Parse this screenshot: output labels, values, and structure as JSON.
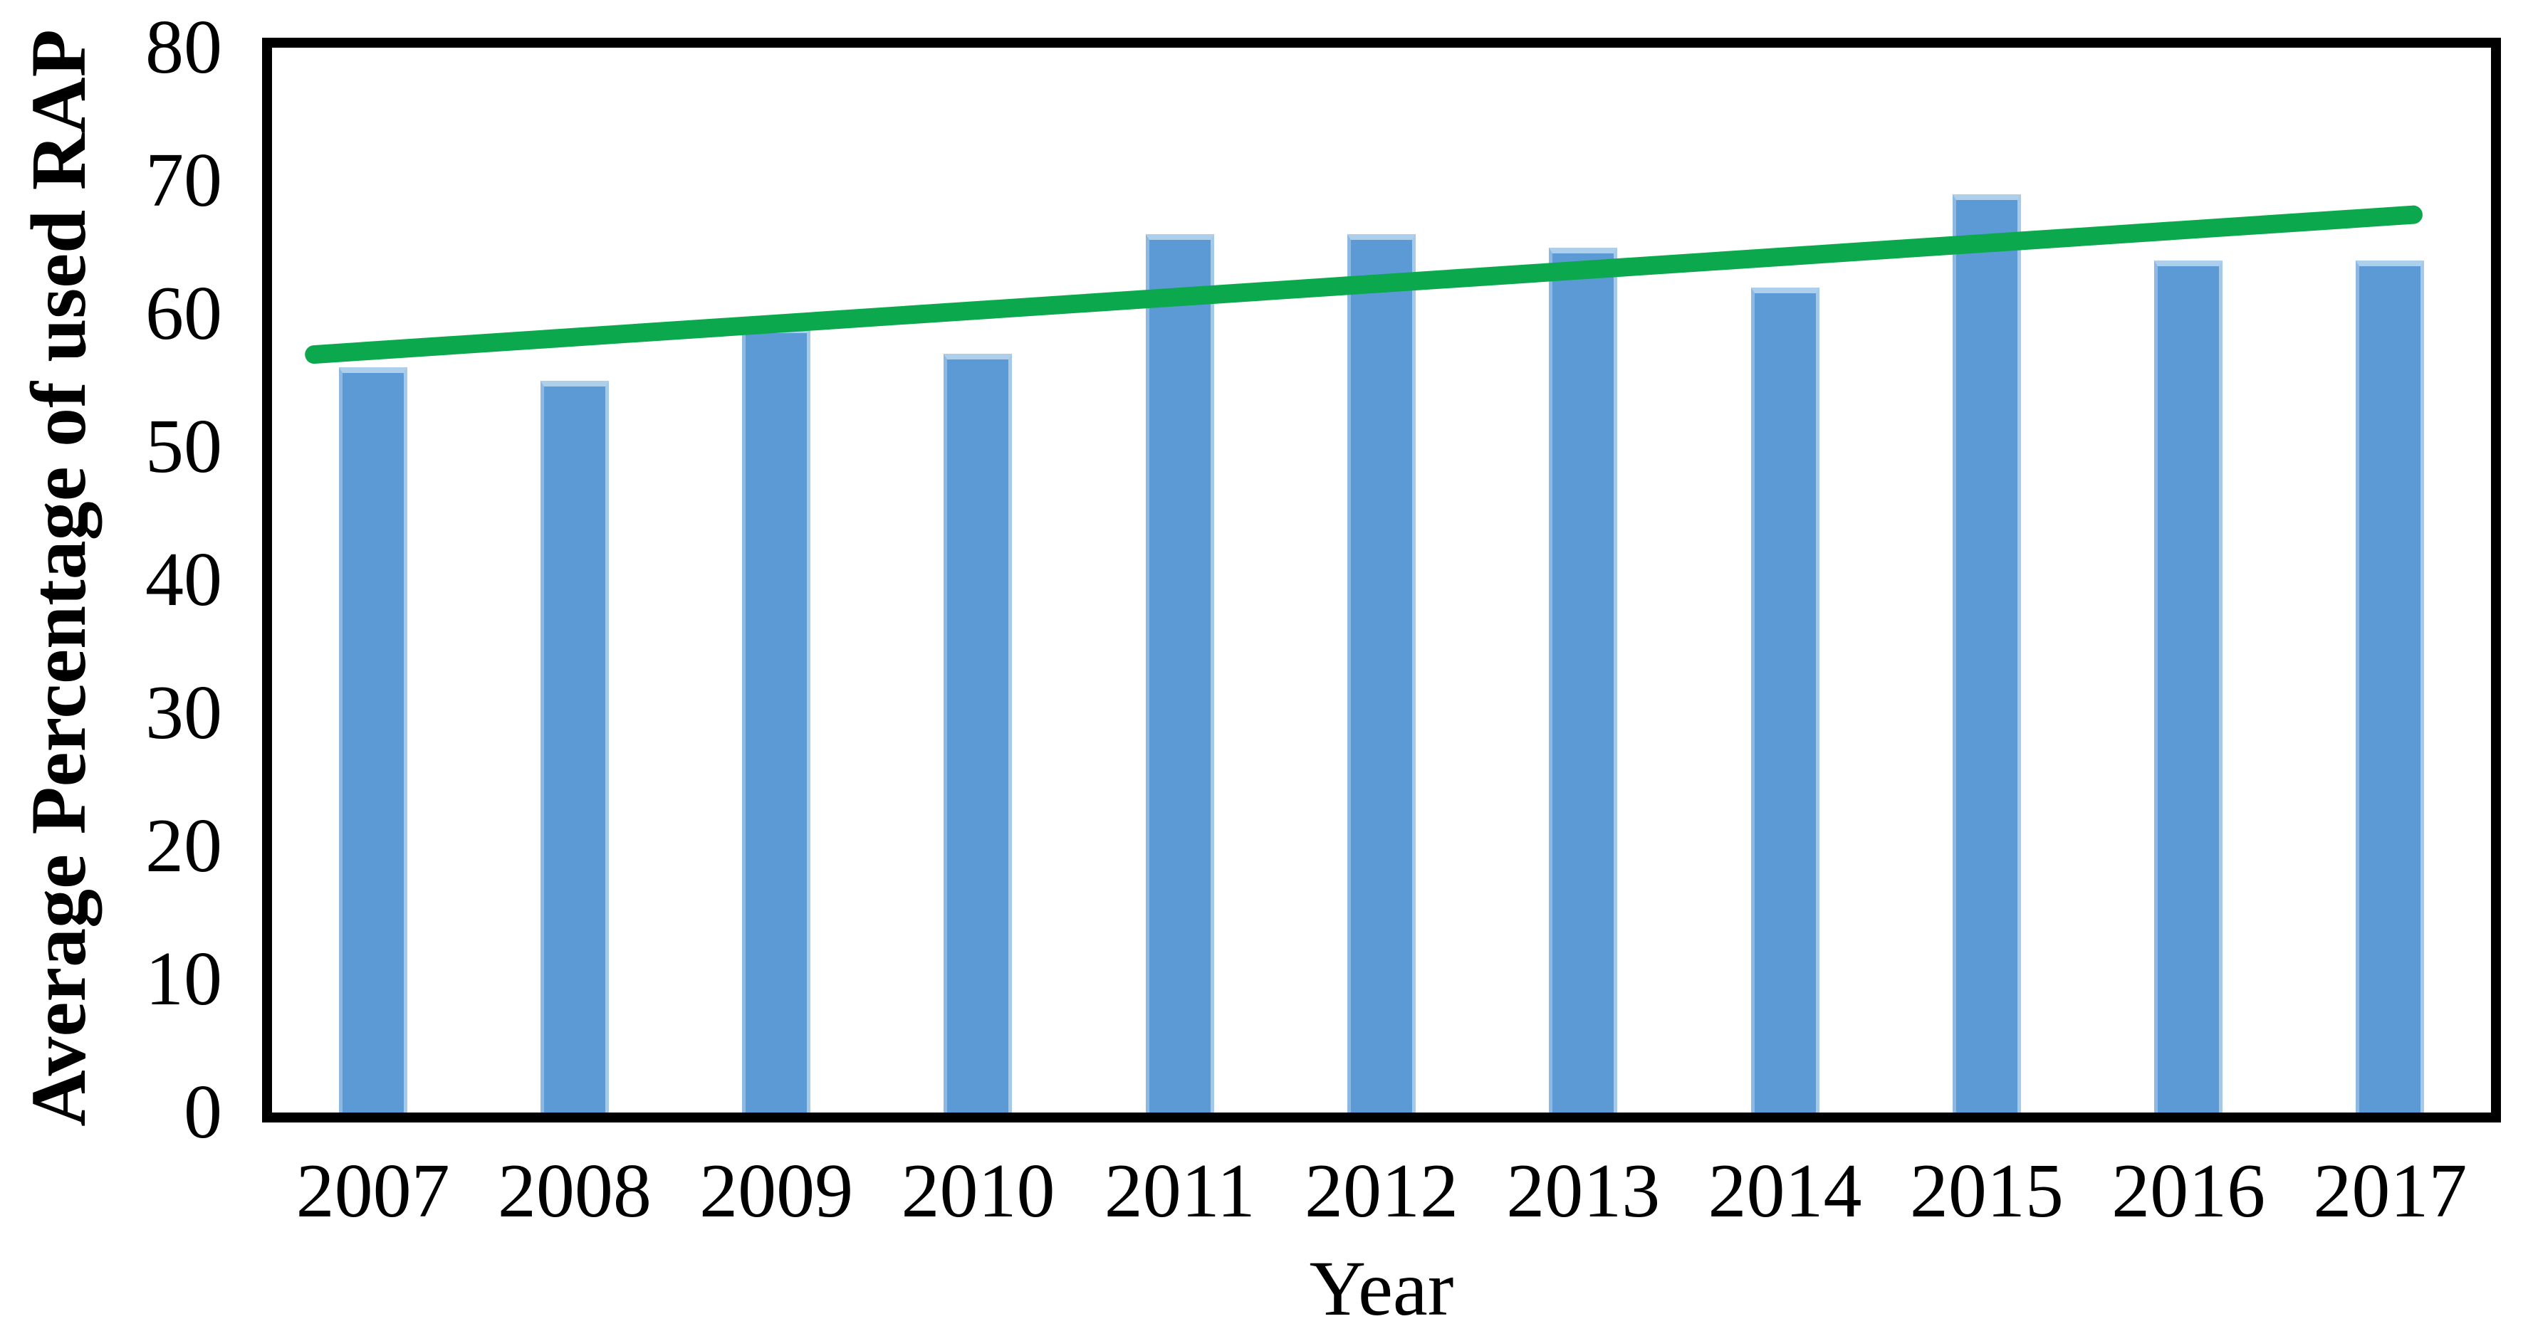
{
  "chart_data": {
    "type": "bar",
    "title": "",
    "xlabel": "Year",
    "ylabel": "Average Percentage of used RAP",
    "categories": [
      "2007",
      "2008",
      "2009",
      "2010",
      "2011",
      "2012",
      "2013",
      "2014",
      "2015",
      "2016",
      "2017"
    ],
    "series": [
      {
        "name": "Average Percentage of used RAP",
        "values": [
          56,
          55,
          59,
          57,
          66,
          66,
          65,
          62,
          69,
          64,
          64
        ]
      }
    ],
    "trendline": {
      "start": {
        "x_frac": 0.019,
        "value": 56.95
      },
      "end": {
        "x_frac": 0.965,
        "value": 67.45
      },
      "color": "#0CA84E"
    },
    "ylim": [
      0,
      80
    ],
    "yticks": [
      0,
      10,
      20,
      30,
      40,
      50,
      60,
      70,
      80
    ],
    "grid": false,
    "legend": "none",
    "bar_color": "#5B9AD5",
    "bar_edge_color": "#AECFEC",
    "axis_color": "#000000",
    "background_color": "#FFFFFF"
  }
}
